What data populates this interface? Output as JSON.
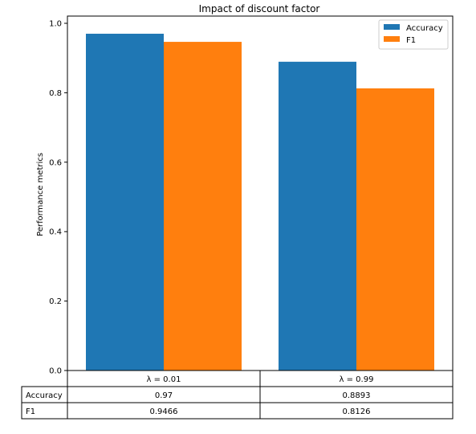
{
  "chart_data": {
    "type": "bar",
    "title": "Impact of discount factor",
    "xlabel": "",
    "ylabel": "Performance metrics",
    "ylim": [
      0,
      1.0
    ],
    "yticks": [
      "0.0",
      "0.2",
      "0.4",
      "0.6",
      "0.8",
      "1.0"
    ],
    "grid": false,
    "legend_position": "top-right",
    "categories": [
      "λ = 0.01",
      "λ = 0.99"
    ],
    "series": [
      {
        "name": "Accuracy",
        "color": "#1f77b4",
        "values": [
          0.97,
          0.8893
        ]
      },
      {
        "name": "F1",
        "color": "#ff7f0e",
        "values": [
          0.9466,
          0.8126
        ]
      }
    ],
    "table": {
      "col_labels": [
        "λ = 0.01",
        "λ = 0.99"
      ],
      "rows": [
        {
          "label": "Accuracy",
          "cells": [
            "0.97",
            "0.8893"
          ]
        },
        {
          "label": "F1",
          "cells": [
            "0.9466",
            "0.8126"
          ]
        }
      ]
    }
  }
}
